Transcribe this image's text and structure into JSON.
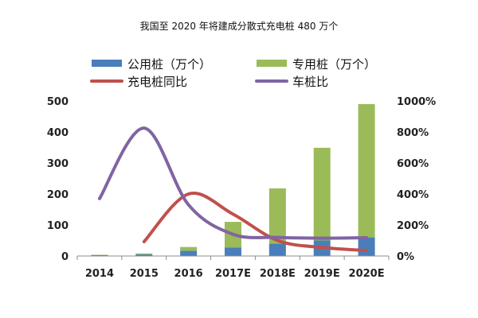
{
  "title": "我国至 2020 年将建成分散式充电桩 480 万个",
  "chart_data": {
    "type": "bar",
    "title": "我国至 2020 年将建成分散式充电桩 480 万个",
    "categories": [
      "2014",
      "2015",
      "2016",
      "2017E",
      "2018E",
      "2019E",
      "2020E"
    ],
    "stacked": true,
    "series": [
      {
        "name": "公用桩（万个）",
        "type": "bar",
        "axis": "left",
        "color": "#4a7ebb",
        "values": [
          3,
          5,
          17,
          27,
          40,
          50,
          60
        ]
      },
      {
        "name": "专用桩（万个）",
        "type": "bar",
        "axis": "left",
        "color": "#9bbb59",
        "values": [
          1,
          3,
          12,
          83,
          178,
          299,
          430
        ]
      },
      {
        "name": "充电桩同比",
        "type": "line",
        "axis": "right",
        "color": "#c0504d",
        "values": [
          null,
          92,
          400,
          270,
          100,
          55,
          35
        ]
      },
      {
        "name": "车桩比",
        "type": "line",
        "axis": "right",
        "color": "#8064a2",
        "values": [
          370,
          825,
          330,
          140,
          120,
          115,
          118
        ]
      }
    ],
    "yleft": {
      "range": [
        0,
        500
      ],
      "ticks": [
        "0",
        "100",
        "200",
        "300",
        "400",
        "500"
      ]
    },
    "yright": {
      "range": [
        0,
        1000
      ],
      "ticks": [
        "0%",
        "200%",
        "400%",
        "600%",
        "800%",
        "1000%"
      ]
    },
    "legend": {
      "position": "top"
    },
    "grid": false
  }
}
